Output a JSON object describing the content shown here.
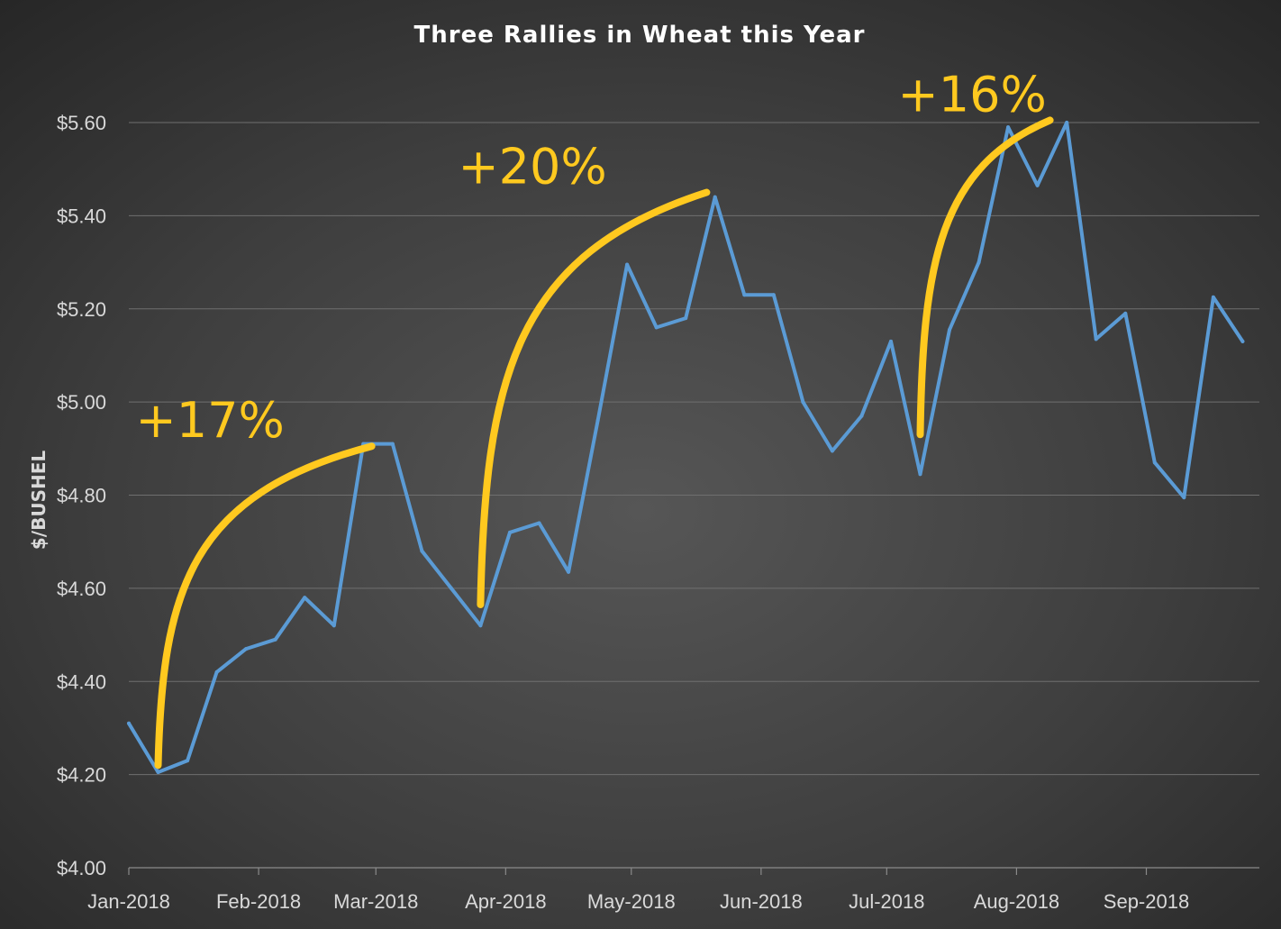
{
  "chart_data": {
    "type": "line",
    "title": "Three Rallies in Wheat this Year",
    "xlabel": "",
    "ylabel": "$/BUSHEL",
    "ylim": [
      4.0,
      5.6
    ],
    "y_ticks": [
      "$4.00",
      "$4.20",
      "$4.40",
      "$4.60",
      "$4.80",
      "$5.00",
      "$5.20",
      "$5.40",
      "$5.60"
    ],
    "y_tick_values": [
      4.0,
      4.2,
      4.4,
      4.6,
      4.8,
      5.0,
      5.2,
      5.4,
      5.6
    ],
    "x_ticks": [
      "Jan-2018",
      "Feb-2018",
      "Mar-2018",
      "Apr-2018",
      "May-2018",
      "Jun-2018",
      "Jul-2018",
      "Aug-2018",
      "Sep-2018"
    ],
    "x_tick_dates": [
      "2018-01-01",
      "2018-02-01",
      "2018-03-01",
      "2018-04-01",
      "2018-05-01",
      "2018-06-01",
      "2018-07-01",
      "2018-08-01",
      "2018-09-01"
    ],
    "xlim": [
      "2018-01-01",
      "2018-09-28"
    ],
    "grid": true,
    "legend": "none",
    "series": [
      {
        "color": "#5b9bd5",
        "x": [
          "2018-01-01",
          "2018-01-08",
          "2018-01-15",
          "2018-01-22",
          "2018-01-29",
          "2018-02-05",
          "2018-02-12",
          "2018-02-19",
          "2018-02-26",
          "2018-03-05",
          "2018-03-12",
          "2018-03-19",
          "2018-03-26",
          "2018-04-02",
          "2018-04-09",
          "2018-04-16",
          "2018-04-23",
          "2018-04-30",
          "2018-05-07",
          "2018-05-14",
          "2018-05-21",
          "2018-05-28",
          "2018-06-04",
          "2018-06-11",
          "2018-06-18",
          "2018-06-25",
          "2018-07-02",
          "2018-07-09",
          "2018-07-16",
          "2018-07-23",
          "2018-07-30",
          "2018-08-06",
          "2018-08-13",
          "2018-08-20",
          "2018-08-27",
          "2018-09-03",
          "2018-09-10",
          "2018-09-17",
          "2018-09-24"
        ],
        "values": [
          4.31,
          4.205,
          4.23,
          4.42,
          4.47,
          4.49,
          4.58,
          4.52,
          4.91,
          4.91,
          4.68,
          4.6,
          4.52,
          4.72,
          4.74,
          4.635,
          4.96,
          5.295,
          5.16,
          5.18,
          5.44,
          5.23,
          5.23,
          5.0,
          4.895,
          4.97,
          5.13,
          4.845,
          5.155,
          5.3,
          5.59,
          5.465,
          5.6,
          5.135,
          5.19,
          4.87,
          4.795,
          5.225,
          5.13
        ]
      }
    ],
    "annotations": [
      {
        "text": "+17%",
        "arrow_from": [
          "2018-01-08",
          4.22
        ],
        "arrow_to": [
          "2018-02-28",
          4.905
        ]
      },
      {
        "text": "+20%",
        "arrow_from": [
          "2018-03-26",
          4.565
        ],
        "arrow_to": [
          "2018-05-19",
          5.45
        ]
      },
      {
        "text": "+16%",
        "arrow_from": [
          "2018-07-09",
          4.93
        ],
        "arrow_to": [
          "2018-08-09",
          5.605
        ]
      }
    ],
    "highlight_color": "#ffc91f",
    "background_color": "#404040"
  }
}
